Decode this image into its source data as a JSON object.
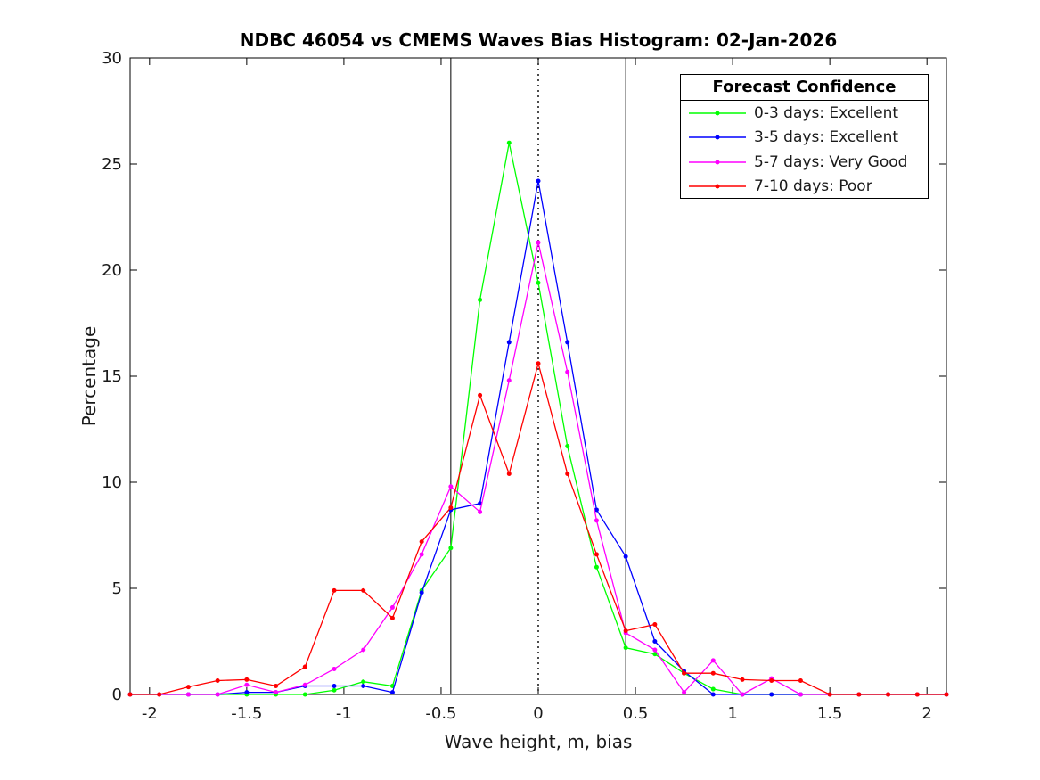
{
  "chart_data": {
    "type": "line",
    "title": "NDBC 46054 vs CMEMS Waves Bias Histogram: 02-Jan-2026",
    "xlabel": "Wave height, m, bias",
    "ylabel": "Percentage",
    "xlim": [
      -2.1,
      2.1
    ],
    "ylim": [
      0,
      30
    ],
    "grid": false,
    "x_ticks": [
      -2,
      -1.5,
      -1,
      -0.5,
      0,
      0.5,
      1,
      1.5,
      2
    ],
    "x_tick_labels": [
      "-2",
      "-1.5",
      "-1",
      "-0.5",
      "0",
      "0.5",
      "1",
      "1.5",
      "2"
    ],
    "y_ticks": [
      0,
      5,
      10,
      15,
      20,
      25,
      30
    ],
    "y_tick_labels": [
      "0",
      "5",
      "10",
      "15",
      "20",
      "25",
      "30"
    ],
    "x": [
      -2.1,
      -1.95,
      -1.8,
      -1.65,
      -1.5,
      -1.35,
      -1.2,
      -1.05,
      -0.9,
      -0.75,
      -0.6,
      -0.45,
      -0.3,
      -0.15,
      0,
      0.15,
      0.3,
      0.45,
      0.6,
      0.75,
      0.9,
      1.05,
      1.2,
      1.35,
      1.5,
      1.65,
      1.8,
      1.95,
      2.1
    ],
    "series": [
      {
        "name": "0-3 days: Excellent",
        "color": "#00ff00",
        "values": [
          0,
          0,
          0,
          0,
          0,
          0,
          0,
          0.2,
          0.6,
          0.4,
          4.9,
          6.9,
          18.6,
          26,
          19.4,
          11.7,
          6,
          2.2,
          1.9,
          1,
          0.25,
          0,
          0,
          0,
          0,
          0,
          0,
          0,
          0
        ]
      },
      {
        "name": "3-5 days: Excellent",
        "color": "#0000ff",
        "values": [
          0,
          0,
          0,
          0,
          0.1,
          0.1,
          0.4,
          0.4,
          0.4,
          0.1,
          4.8,
          8.7,
          9,
          16.6,
          24.2,
          16.6,
          8.7,
          6.5,
          2.5,
          1.1,
          0,
          0,
          0,
          0,
          0,
          0,
          0,
          0,
          0
        ]
      },
      {
        "name": "5-7 days: Very Good",
        "color": "#ff00ff",
        "values": [
          0,
          0,
          0,
          0,
          0.45,
          0.1,
          0.45,
          1.2,
          2.1,
          4.1,
          6.6,
          9.8,
          8.6,
          14.8,
          21.3,
          15.2,
          8.2,
          2.9,
          2.1,
          0.1,
          1.6,
          0,
          0.75,
          0,
          0,
          0,
          0,
          0,
          0
        ]
      },
      {
        "name": "7-10 days: Poor",
        "color": "#ff0000",
        "values": [
          0,
          0,
          0.35,
          0.65,
          0.7,
          0.4,
          1.3,
          4.9,
          4.9,
          3.6,
          7.2,
          8.8,
          14.1,
          10.4,
          15.6,
          10.4,
          6.6,
          3,
          3.3,
          1,
          1,
          0.7,
          0.65,
          0.65,
          0,
          0,
          0,
          0,
          0
        ]
      }
    ],
    "reference_lines": [
      {
        "x": -0.45,
        "style": "solid",
        "color": "#000000"
      },
      {
        "x": 0,
        "style": "dotted",
        "color": "#000000"
      },
      {
        "x": 0.45,
        "style": "solid",
        "color": "#000000"
      }
    ],
    "legend": {
      "title": "Forecast Confidence",
      "position": "top-right"
    }
  }
}
